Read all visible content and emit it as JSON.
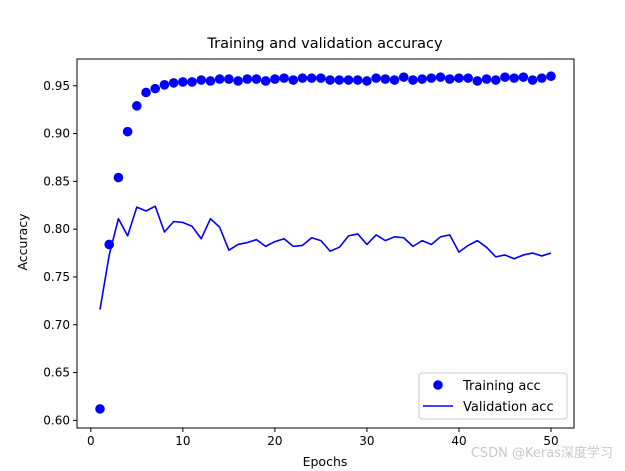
{
  "chart_data": {
    "type": "line",
    "title": "Training and validation accuracy",
    "xlabel": "Epochs",
    "ylabel": "Accuracy",
    "xlim": [
      -1.5,
      52.5
    ],
    "ylim": [
      0.592,
      0.978
    ],
    "xticks": [
      0,
      10,
      20,
      30,
      40,
      50
    ],
    "xtick_labels": [
      "0",
      "10",
      "20",
      "30",
      "40",
      "50"
    ],
    "yticks": [
      0.6,
      0.65,
      0.7,
      0.75,
      0.8,
      0.85,
      0.9,
      0.95
    ],
    "ytick_labels": [
      "0.60",
      "0.65",
      "0.70",
      "0.75",
      "0.80",
      "0.85",
      "0.90",
      "0.95"
    ],
    "legend_position": "lower-right",
    "grid": false,
    "series": [
      {
        "name": "Training acc",
        "style": "markers",
        "color": "#0000ff",
        "x": [
          1,
          2,
          3,
          4,
          5,
          6,
          7,
          8,
          9,
          10,
          11,
          12,
          13,
          14,
          15,
          16,
          17,
          18,
          19,
          20,
          21,
          22,
          23,
          24,
          25,
          26,
          27,
          28,
          29,
          30,
          31,
          32,
          33,
          34,
          35,
          36,
          37,
          38,
          39,
          40,
          41,
          42,
          43,
          44,
          45,
          46,
          47,
          48,
          49,
          50
        ],
        "values": [
          0.612,
          0.784,
          0.854,
          0.902,
          0.929,
          0.943,
          0.947,
          0.951,
          0.953,
          0.954,
          0.954,
          0.956,
          0.955,
          0.957,
          0.957,
          0.955,
          0.957,
          0.957,
          0.955,
          0.957,
          0.958,
          0.956,
          0.958,
          0.958,
          0.958,
          0.956,
          0.956,
          0.956,
          0.956,
          0.955,
          0.958,
          0.957,
          0.956,
          0.959,
          0.956,
          0.957,
          0.958,
          0.959,
          0.957,
          0.958,
          0.958,
          0.955,
          0.957,
          0.956,
          0.959,
          0.958,
          0.959,
          0.956,
          0.958,
          0.96
        ]
      },
      {
        "name": "Validation acc",
        "style": "line",
        "color": "#0000ff",
        "x": [
          1,
          2,
          3,
          4,
          5,
          6,
          7,
          8,
          9,
          10,
          11,
          12,
          13,
          14,
          15,
          16,
          17,
          18,
          19,
          20,
          21,
          22,
          23,
          24,
          25,
          26,
          27,
          28,
          29,
          30,
          31,
          32,
          33,
          34,
          35,
          36,
          37,
          38,
          39,
          40,
          41,
          42,
          43,
          44,
          45,
          46,
          47,
          48,
          49,
          50
        ],
        "values": [
          0.716,
          0.773,
          0.811,
          0.793,
          0.823,
          0.819,
          0.824,
          0.797,
          0.808,
          0.807,
          0.803,
          0.79,
          0.811,
          0.802,
          0.778,
          0.784,
          0.786,
          0.789,
          0.782,
          0.787,
          0.79,
          0.782,
          0.783,
          0.791,
          0.788,
          0.777,
          0.781,
          0.793,
          0.795,
          0.784,
          0.794,
          0.788,
          0.792,
          0.791,
          0.782,
          0.788,
          0.784,
          0.792,
          0.794,
          0.776,
          0.783,
          0.788,
          0.781,
          0.771,
          0.773,
          0.769,
          0.773,
          0.775,
          0.772,
          0.775
        ]
      }
    ]
  },
  "watermark": "CSDN @Keras深度学习"
}
